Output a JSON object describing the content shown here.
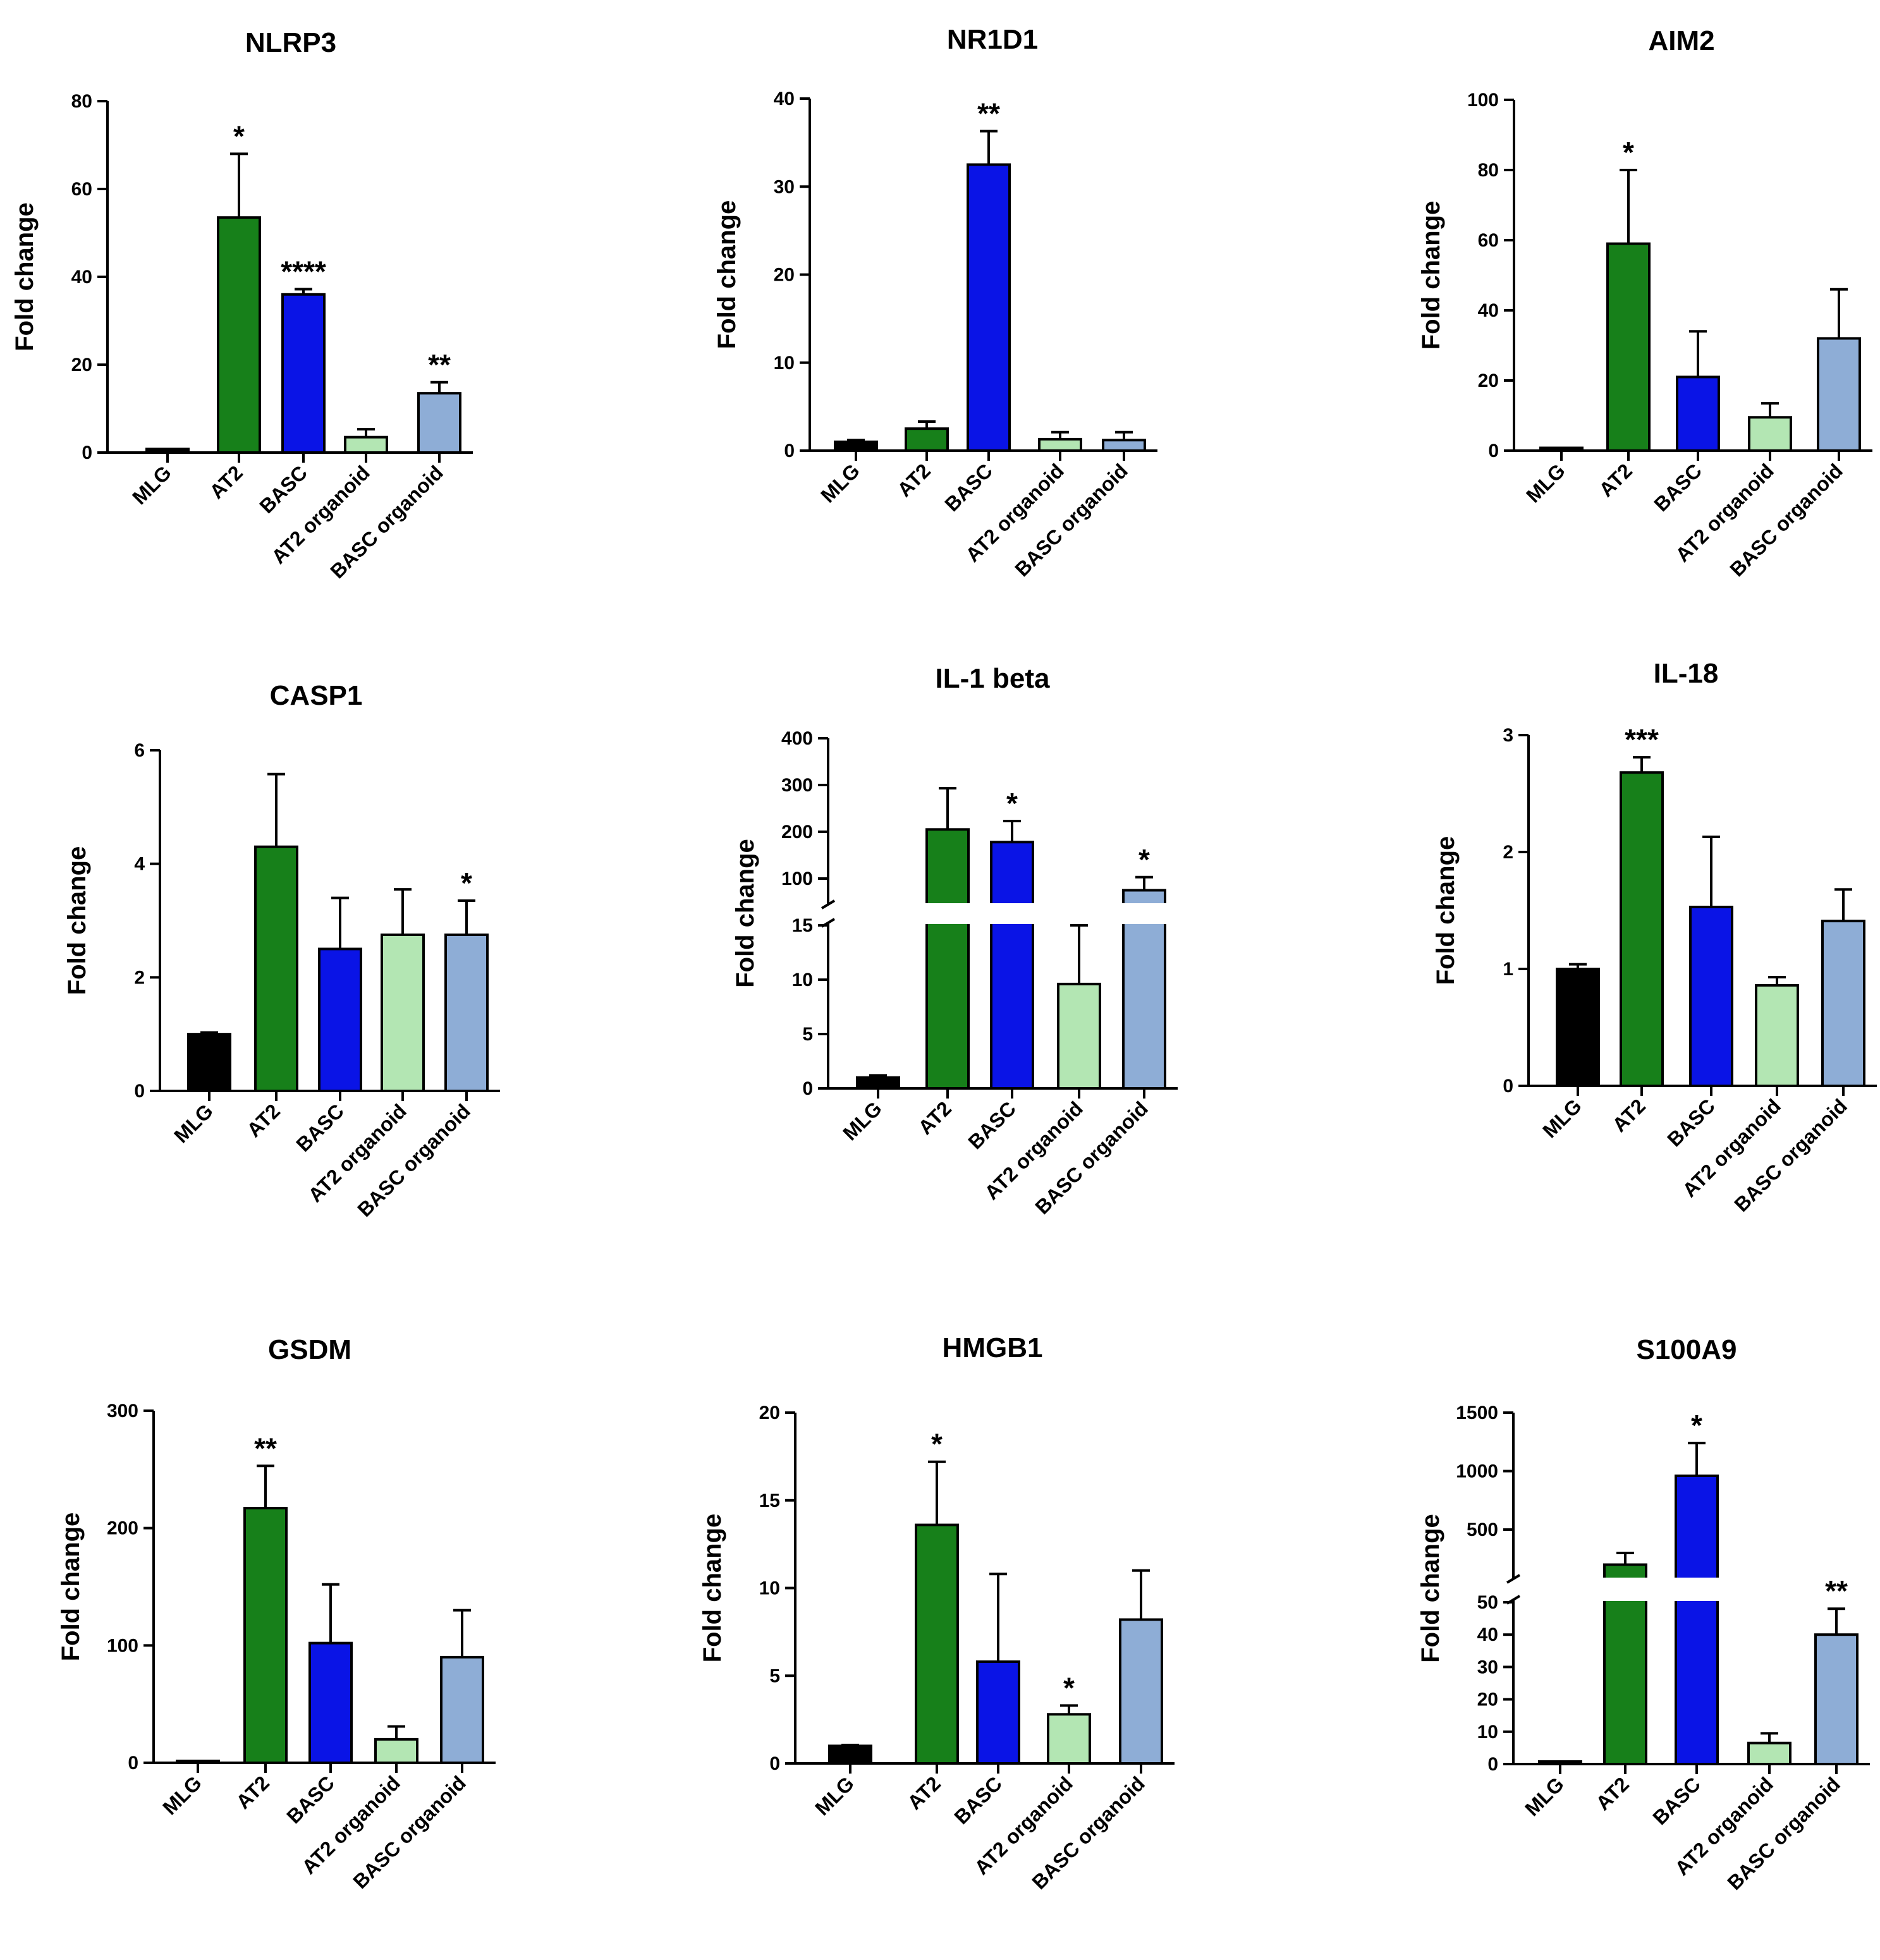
{
  "categories": [
    "MLG",
    "AT2",
    "BASC",
    "AT2 organoid",
    "BASC organoid"
  ],
  "colors": [
    "#000000",
    "#17801a",
    "#0a14e6",
    "#b3e6b3",
    "#8eadd6"
  ],
  "chart_data": [
    {
      "type": "bar",
      "title": "NLRP3",
      "ylabel": "Fold change",
      "ylim": [
        0,
        80
      ],
      "yticks": [
        "0",
        "20",
        "40",
        "60",
        "80"
      ],
      "values": [
        0.8,
        53.5,
        36,
        3.5,
        13.5
      ],
      "errors": [
        0.4,
        14.5,
        1.2,
        1.8,
        2.5
      ],
      "significance": [
        "",
        "*",
        "****",
        "",
        "**"
      ]
    },
    {
      "type": "bar",
      "title": "NR1D1",
      "ylabel": "Fold change",
      "ylim": [
        0,
        40
      ],
      "yticks": [
        "0",
        "10",
        "20",
        "30",
        "40"
      ],
      "values": [
        1,
        2.5,
        32.5,
        1.3,
        1.2
      ],
      "errors": [
        0.2,
        0.8,
        3.8,
        0.8,
        0.9
      ],
      "significance": [
        "",
        "",
        "**",
        "",
        ""
      ]
    },
    {
      "type": "bar",
      "title": "AIM2",
      "ylabel": "Fold change",
      "ylim": [
        0,
        100
      ],
      "yticks": [
        "0",
        "20",
        "40",
        "60",
        "80",
        "100"
      ],
      "values": [
        0.8,
        59,
        21,
        9.5,
        32
      ],
      "errors": [
        0.3,
        21,
        13,
        4,
        14
      ],
      "significance": [
        "",
        "*",
        "",
        "",
        ""
      ]
    },
    {
      "type": "bar",
      "title": "CASP1",
      "ylabel": "Fold change",
      "ylim": [
        0,
        6
      ],
      "yticks": [
        "0",
        "2",
        "4",
        "6"
      ],
      "values": [
        1,
        4.3,
        2.5,
        2.75,
        2.75
      ],
      "errors": [
        0.03,
        1.28,
        0.9,
        0.8,
        0.6
      ],
      "significance": [
        "",
        "",
        "",
        "",
        "*"
      ]
    },
    {
      "type": "bar",
      "title": "IL-1 beta",
      "ylabel": "Fold change",
      "broken_axis": true,
      "lower_range": [
        0,
        15
      ],
      "upper_range": [
        50,
        400
      ],
      "yticks_lower": [
        "0",
        "5",
        "10",
        "15"
      ],
      "yticks_upper": [
        "100",
        "200",
        "300",
        "400"
      ],
      "values": [
        1,
        205,
        178,
        9.6,
        75
      ],
      "errors": [
        0.2,
        88,
        45,
        5.5,
        28
      ],
      "significance": [
        "",
        "",
        "*",
        "",
        "*"
      ]
    },
    {
      "type": "bar",
      "title": "IL-18",
      "ylabel": "Fold change",
      "ylim": [
        0,
        3
      ],
      "yticks": [
        "0",
        "1",
        "2",
        "3"
      ],
      "values": [
        1,
        2.68,
        1.53,
        0.86,
        1.41
      ],
      "errors": [
        0.04,
        0.13,
        0.6,
        0.07,
        0.27
      ],
      "significance": [
        "",
        "***",
        "",
        "",
        ""
      ]
    },
    {
      "type": "bar",
      "title": "GSDM",
      "ylabel": "Fold change",
      "ylim": [
        0,
        300
      ],
      "yticks": [
        "0",
        "100",
        "200",
        "300"
      ],
      "values": [
        0.5,
        217,
        102,
        20,
        90
      ],
      "errors": [
        0.3,
        36,
        50,
        11,
        40
      ],
      "significance": [
        "",
        "**",
        "",
        "",
        ""
      ]
    },
    {
      "type": "bar",
      "title": "HMGB1",
      "ylabel": "Fold change",
      "ylim": [
        0,
        20
      ],
      "yticks": [
        "0",
        "5",
        "10",
        "15",
        "20"
      ],
      "values": [
        1,
        13.6,
        5.8,
        2.8,
        8.2
      ],
      "errors": [
        0.05,
        3.6,
        5,
        0.5,
        2.8
      ],
      "significance": [
        "",
        "*",
        "",
        "*",
        ""
      ]
    },
    {
      "type": "bar",
      "title": "S100A9",
      "ylabel": "Fold change",
      "broken_axis": true,
      "lower_range": [
        0,
        50
      ],
      "upper_range": [
        100,
        1500
      ],
      "yticks_lower": [
        "0",
        "10",
        "20",
        "30",
        "40",
        "50"
      ],
      "yticks_upper": [
        "500",
        "1000",
        "1500"
      ],
      "values": [
        0.8,
        200,
        960,
        6.5,
        40
      ],
      "errors": [
        0.3,
        100,
        280,
        3,
        8
      ],
      "significance": [
        "",
        "",
        "*",
        "",
        "**"
      ]
    }
  ]
}
